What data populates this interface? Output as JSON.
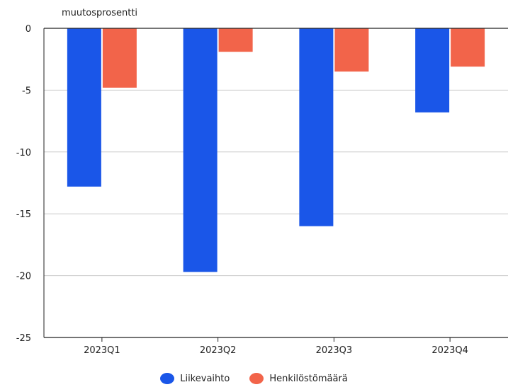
{
  "chart_data": {
    "type": "bar",
    "ylabel": "muutosprosentti",
    "categories": [
      "2023Q1",
      "2023Q2",
      "2023Q3",
      "2023Q4"
    ],
    "series": [
      {
        "name": "Liikevaihto",
        "color": "#1a56e8",
        "values": [
          -12.8,
          -19.7,
          -16.0,
          -6.8
        ]
      },
      {
        "name": "Henkilöstömäärä",
        "color": "#f2644a",
        "values": [
          -4.8,
          -1.9,
          -3.5,
          -3.1
        ]
      }
    ],
    "ylim": [
      -25,
      0
    ],
    "yticks": [
      0,
      -5,
      -10,
      -15,
      -20,
      -25
    ],
    "ytick_labels": [
      "0",
      "-5",
      "-10",
      "-15",
      "-20",
      "-25"
    ],
    "grid": true,
    "legend_position": "bottom"
  }
}
